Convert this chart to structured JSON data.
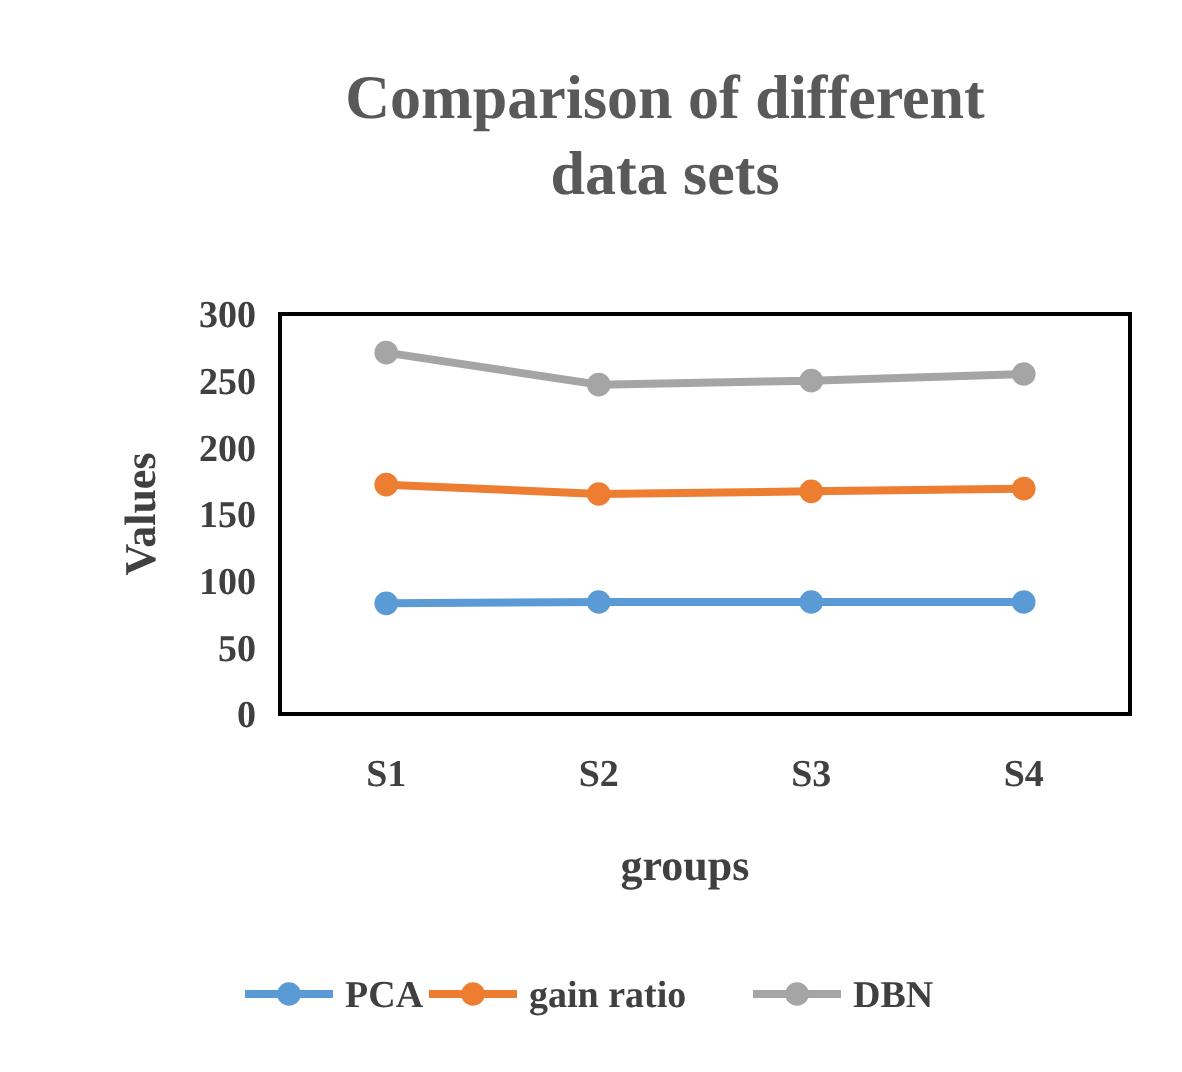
{
  "chart_data": {
    "type": "line",
    "title": "Comparison of different data sets",
    "xlabel": "groups",
    "ylabel": "Values",
    "categories": [
      "S1",
      "S2",
      "S3",
      "S4"
    ],
    "series": [
      {
        "name": "PCA",
        "color": "#5b9bd5",
        "values": [
          83,
          84,
          84,
          84
        ]
      },
      {
        "name": "gain ratio",
        "color": "#ed7d31",
        "values": [
          172,
          165,
          167,
          169
        ]
      },
      {
        "name": "DBN",
        "color": "#a5a5a5",
        "values": [
          271,
          247,
          250,
          255
        ]
      }
    ],
    "ylim": [
      0,
      300
    ],
    "yticks": [
      0,
      50,
      100,
      150,
      200,
      250,
      300
    ],
    "grid": false,
    "legend": "bottom",
    "marker": "circle",
    "line_style": "solid"
  }
}
